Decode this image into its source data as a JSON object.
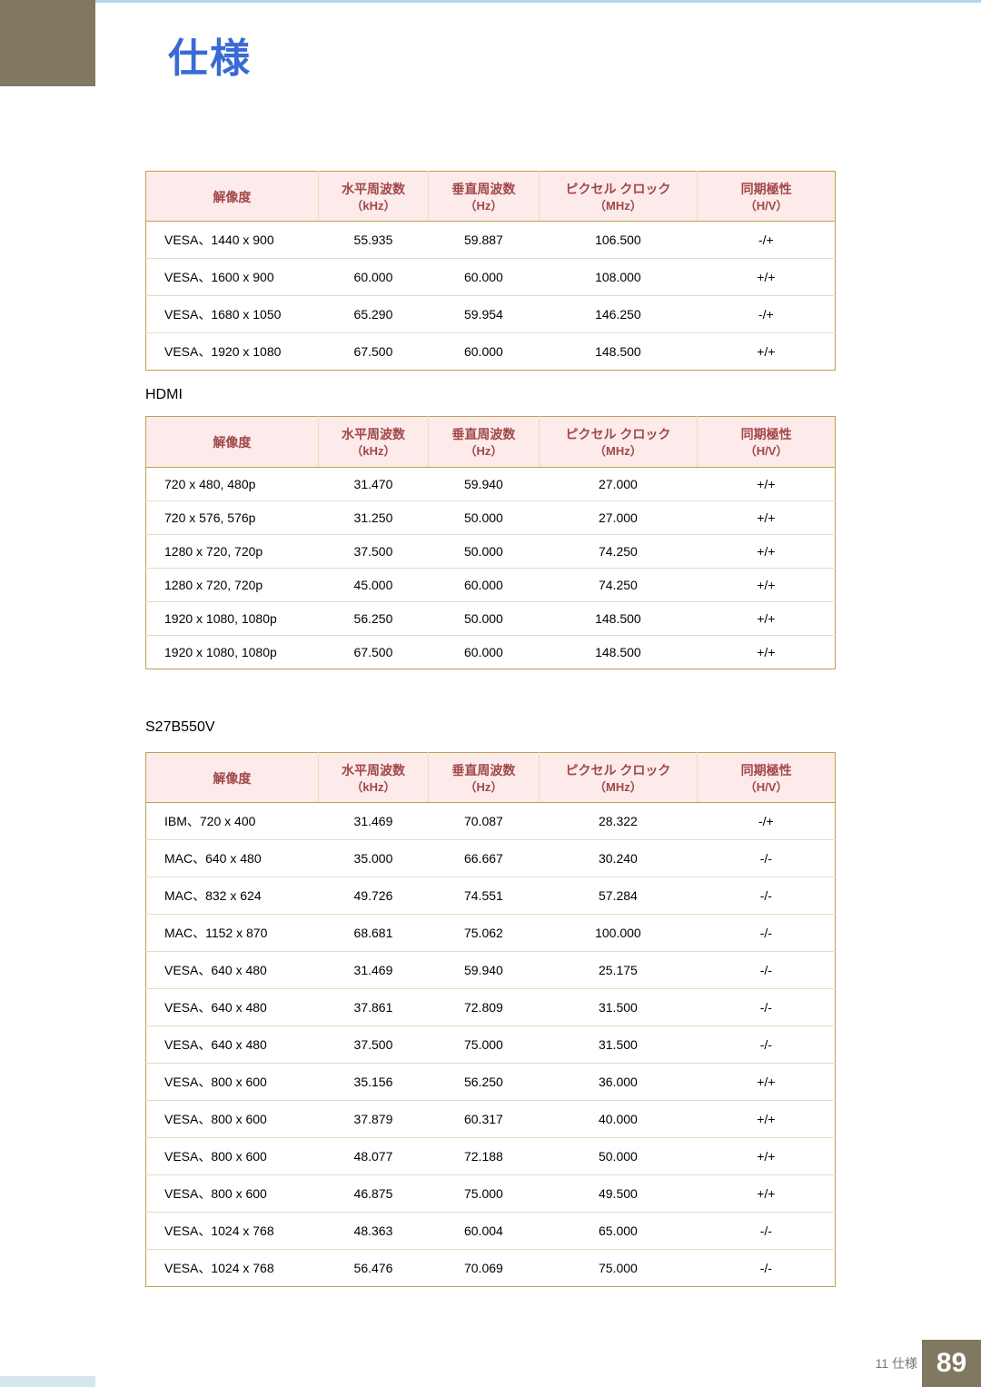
{
  "page_title": "仕様",
  "footer": {
    "chapter_label": "11 仕様",
    "page_number": "89"
  },
  "colors": {
    "title": "#3a6bd4",
    "sidebar": "#807861",
    "header_bg": "#fdeaea",
    "header_text": "#a04848",
    "border": "#bba34f",
    "row_border": "#e7dcbf",
    "top_border": "#b3d6f0"
  },
  "headers": {
    "resolution": "解像度",
    "hfreq": "水平周波数",
    "hfreq_unit": "（kHz）",
    "vfreq": "垂直周波数",
    "vfreq_unit": "（Hz）",
    "pixelclock": "ピクセル クロック",
    "pixelclock_unit": "（MHz）",
    "polarity": "同期極性",
    "polarity_unit": "（H/V）"
  },
  "section_hdmi_label": "HDMI",
  "section_model_label": "S27B550V",
  "table1": {
    "rows": [
      [
        "VESA、1440 x 900",
        "55.935",
        "59.887",
        "106.500",
        "-/+"
      ],
      [
        "VESA、1600 x 900",
        "60.000",
        "60.000",
        "108.000",
        "+/+"
      ],
      [
        "VESA、1680 x 1050",
        "65.290",
        "59.954",
        "146.250",
        "-/+"
      ],
      [
        "VESA、1920 x 1080",
        "67.500",
        "60.000",
        "148.500",
        "+/+"
      ]
    ]
  },
  "table2": {
    "rows": [
      [
        "720 x 480, 480p",
        "31.470",
        "59.940",
        "27.000",
        "+/+"
      ],
      [
        "720 x 576, 576p",
        "31.250",
        "50.000",
        "27.000",
        "+/+"
      ],
      [
        "1280 x 720, 720p",
        "37.500",
        "50.000",
        "74.250",
        "+/+"
      ],
      [
        "1280 x 720, 720p",
        "45.000",
        "60.000",
        "74.250",
        "+/+"
      ],
      [
        "1920 x 1080, 1080p",
        "56.250",
        "50.000",
        "148.500",
        "+/+"
      ],
      [
        "1920 x 1080, 1080p",
        "67.500",
        "60.000",
        "148.500",
        "+/+"
      ]
    ]
  },
  "table3": {
    "rows": [
      [
        "IBM、720 x 400",
        "31.469",
        "70.087",
        "28.322",
        "-/+"
      ],
      [
        "MAC、640 x 480",
        "35.000",
        "66.667",
        "30.240",
        "-/-"
      ],
      [
        "MAC、832 x 624",
        "49.726",
        "74.551",
        "57.284",
        "-/-"
      ],
      [
        "MAC、1152 x 870",
        "68.681",
        "75.062",
        "100.000",
        "-/-"
      ],
      [
        "VESA、640 x 480",
        "31.469",
        "59.940",
        "25.175",
        "-/-"
      ],
      [
        "VESA、640 x 480",
        "37.861",
        "72.809",
        "31.500",
        "-/-"
      ],
      [
        "VESA、640 x 480",
        "37.500",
        "75.000",
        "31.500",
        "-/-"
      ],
      [
        "VESA、800 x 600",
        "35.156",
        "56.250",
        "36.000",
        "+/+"
      ],
      [
        "VESA、800 x 600",
        "37.879",
        "60.317",
        "40.000",
        "+/+"
      ],
      [
        "VESA、800 x 600",
        "48.077",
        "72.188",
        "50.000",
        "+/+"
      ],
      [
        "VESA、800 x 600",
        "46.875",
        "75.000",
        "49.500",
        "+/+"
      ],
      [
        "VESA、1024 x 768",
        "48.363",
        "60.004",
        "65.000",
        "-/-"
      ],
      [
        "VESA、1024 x 768",
        "56.476",
        "70.069",
        "75.000",
        "-/-"
      ]
    ]
  }
}
